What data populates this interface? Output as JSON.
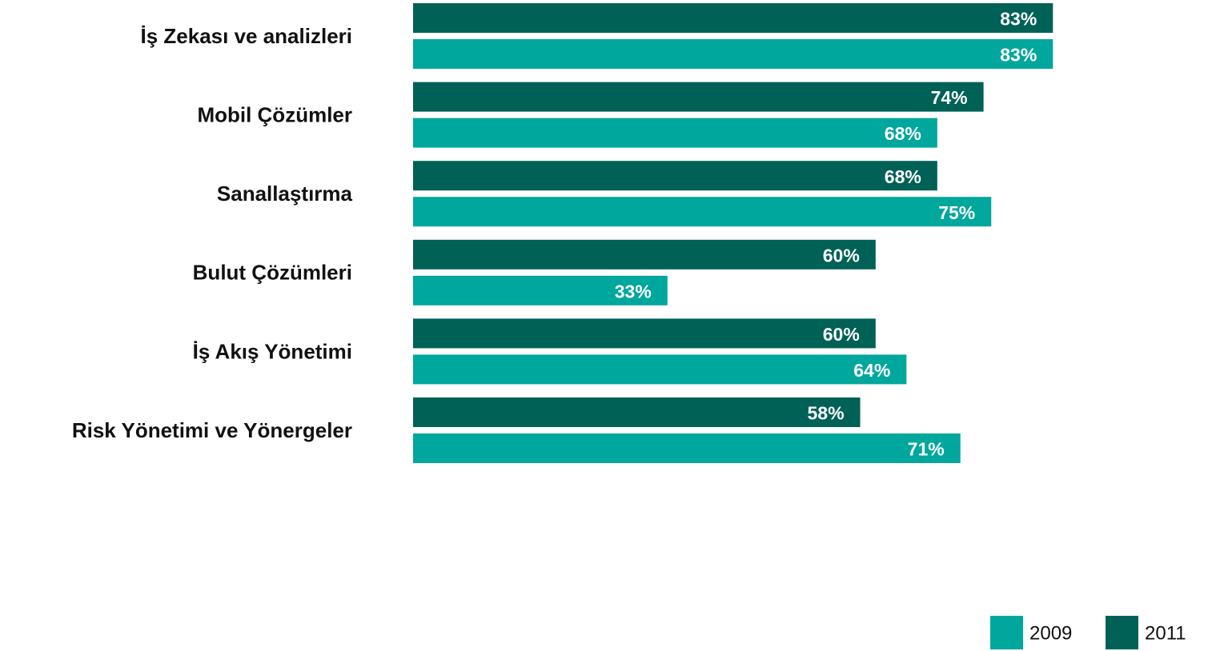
{
  "chart_data": {
    "type": "bar",
    "orientation": "horizontal",
    "categories": [
      "İş Zekası ve analizleri",
      "Mobil Çözümler",
      "Sanallaştırma",
      "Bulut Çözümleri",
      "İş Akış Yönetimi",
      "Risk Yönetimi ve Yönergeler"
    ],
    "series": [
      {
        "name": "2009",
        "color": "#00a79d",
        "values": [
          83,
          68,
          75,
          33,
          64,
          71
        ],
        "value_labels": [
          "83%",
          "68%",
          "75%",
          "33%",
          "64%",
          "71%"
        ]
      },
      {
        "name": "2011",
        "color": "#006157",
        "values": [
          83,
          74,
          68,
          60,
          60,
          58
        ],
        "value_labels": [
          "83%",
          "74%",
          "68%",
          "60%",
          "60%",
          "58%"
        ]
      }
    ],
    "xlim": [
      0,
      100
    ],
    "legend": "bottom-right"
  }
}
